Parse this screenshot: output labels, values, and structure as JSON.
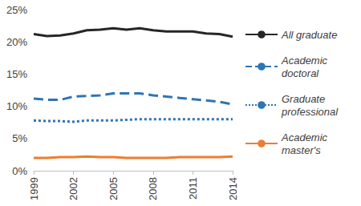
{
  "chart_data": {
    "type": "line",
    "x": [
      1999,
      2000,
      2001,
      2002,
      2003,
      2004,
      2005,
      2006,
      2007,
      2008,
      2009,
      2010,
      2011,
      2012,
      2013,
      2014
    ],
    "xlim": [
      1999,
      2014
    ],
    "xticks": [
      1999,
      2002,
      2005,
      2008,
      2011,
      2014
    ],
    "ylim": [
      0,
      25
    ],
    "yticks": [
      {
        "value": 0,
        "label": "0%"
      },
      {
        "value": 5,
        "label": "5%"
      },
      {
        "value": 10,
        "label": "10%"
      },
      {
        "value": 15,
        "label": "15%"
      },
      {
        "value": 20,
        "label": "20%"
      },
      {
        "value": 25,
        "label": "25%"
      }
    ],
    "grid": false,
    "legend": "right",
    "series": [
      {
        "name": "All graduate",
        "color": "#262626",
        "line_style": "solid",
        "values": [
          21.2,
          20.9,
          21.0,
          21.3,
          21.8,
          21.9,
          22.1,
          21.9,
          22.1,
          21.8,
          21.6,
          21.6,
          21.6,
          21.3,
          21.2,
          20.8
        ]
      },
      {
        "name": "Academic doctoral",
        "color": "#2E75B6",
        "line_style": "dashed",
        "values": [
          11.2,
          11.0,
          11.0,
          11.5,
          11.6,
          11.7,
          12.0,
          12.0,
          12.0,
          11.7,
          11.5,
          11.3,
          11.1,
          10.9,
          10.7,
          10.3
        ]
      },
      {
        "name": "Graduate professional",
        "color": "#2E75B6",
        "line_style": "dotted",
        "values": [
          7.8,
          7.7,
          7.7,
          7.6,
          7.8,
          7.8,
          7.8,
          7.9,
          8.0,
          8.0,
          8.0,
          8.0,
          8.0,
          8.0,
          8.0,
          8.0
        ]
      },
      {
        "name": "Academic master's",
        "color": "#ED7D31",
        "line_style": "solid",
        "values": [
          2.0,
          2.0,
          2.1,
          2.1,
          2.2,
          2.1,
          2.1,
          2.0,
          2.0,
          2.0,
          2.0,
          2.1,
          2.1,
          2.1,
          2.1,
          2.2
        ]
      }
    ]
  }
}
